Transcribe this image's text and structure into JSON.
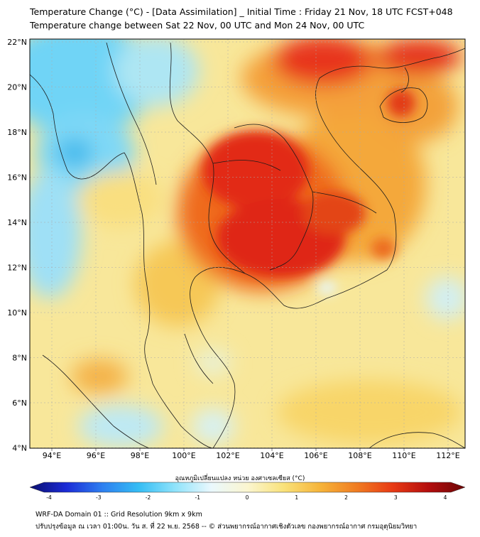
{
  "title_line1": "Temperature Change (°C) - [Data Assimilation] _ Initial Time : Friday 21 Nov, 18 UTC FCST+048",
  "title_line2": "Temperature change between Sat 22 Nov, 00 UTC and Mon 24 Nov, 00 UTC",
  "lon_labels": [
    "94°E",
    "96°E",
    "98°E",
    "100°E",
    "102°E",
    "104°E",
    "106°E",
    "108°E",
    "110°E",
    "112°E"
  ],
  "lat_labels": [
    "22°N",
    "20°N",
    "18°N",
    "16°N",
    "14°N",
    "12°N",
    "10°N",
    "8°N",
    "6°N",
    "4°N"
  ],
  "colorbar": {
    "label": "อุณหภูมิเปลี่ยนแปลง หน่วย องศาเซลเซียส (°C)",
    "ticks": [
      "-4",
      "-3",
      "-2",
      "-1",
      "0",
      "1",
      "2",
      "3",
      "4"
    ],
    "stops": [
      "#0b0f6e",
      "#1b2bd6",
      "#2e7ff0",
      "#35bdf4",
      "#8fe3fb",
      "#eaf8fd",
      "#fbf6d0",
      "#f9e27a",
      "#f6b43a",
      "#f07d22",
      "#e83a14",
      "#b30d0d",
      "#6b0606"
    ]
  },
  "footer_line1": "WRF-DA Domain 01 :: Grid Resolution 9km x 9km",
  "footer_line2": "ปรับปรุงข้อมูล ณ เวลา 01:00น. วัน ส. ที่ 22 พ.ย. 2568 -- © ส่วนพยากรณ์อากาศเชิงตัวเลข กองพยากรณ์อากาศ กรมอุตุนิยมวิทยา"
}
